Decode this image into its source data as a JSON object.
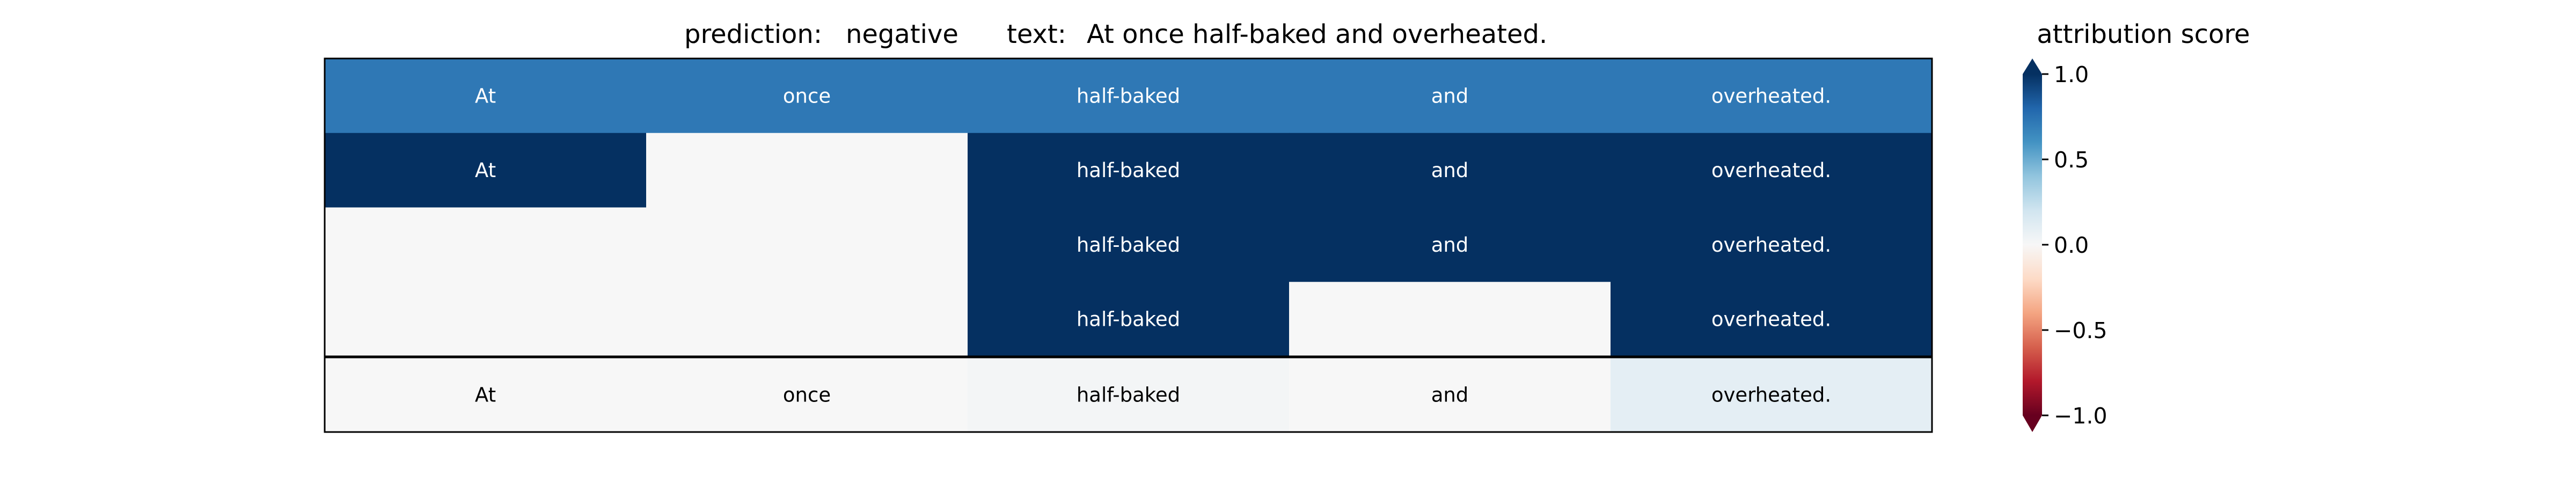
{
  "header": {
    "prediction_label": "prediction:",
    "prediction_value": "negative",
    "text_label": "text:",
    "text_value": "At once half-baked and overheated."
  },
  "chart_data": {
    "type": "heatmap",
    "columns": [
      "At",
      "once",
      "half-baked",
      "and",
      "overheated."
    ],
    "rows": [
      {
        "labels": [
          "At",
          "once",
          "half-baked",
          "and",
          "overheated."
        ],
        "values": [
          0.72,
          0.72,
          0.72,
          0.72,
          0.72
        ]
      },
      {
        "labels": [
          "At",
          "",
          "half-baked",
          "and",
          "overheated."
        ],
        "values": [
          1.0,
          0.0,
          1.0,
          1.0,
          1.0
        ]
      },
      {
        "labels": [
          "",
          "",
          "half-baked",
          "and",
          "overheated."
        ],
        "values": [
          0.0,
          0.0,
          1.0,
          1.0,
          1.0
        ]
      },
      {
        "labels": [
          "",
          "",
          "half-baked",
          "",
          "overheated."
        ],
        "values": [
          0.0,
          0.0,
          1.0,
          0.0,
          1.0
        ]
      }
    ],
    "summary_row": {
      "labels": [
        "At",
        "once",
        "half-baked",
        "and",
        "overheated."
      ],
      "values": [
        0.0,
        0.0,
        0.02,
        0.0,
        0.1
      ]
    },
    "colorbar": {
      "title": "attribution score",
      "range": [
        -1.0,
        1.0
      ],
      "ticks": [
        1.0,
        0.5,
        0.0,
        -0.5,
        -1.0
      ],
      "tick_labels": [
        "1.0",
        "0.5",
        "0.0",
        "−0.5",
        "−1.0"
      ],
      "colormap": "RdBu",
      "extend": "both"
    }
  }
}
